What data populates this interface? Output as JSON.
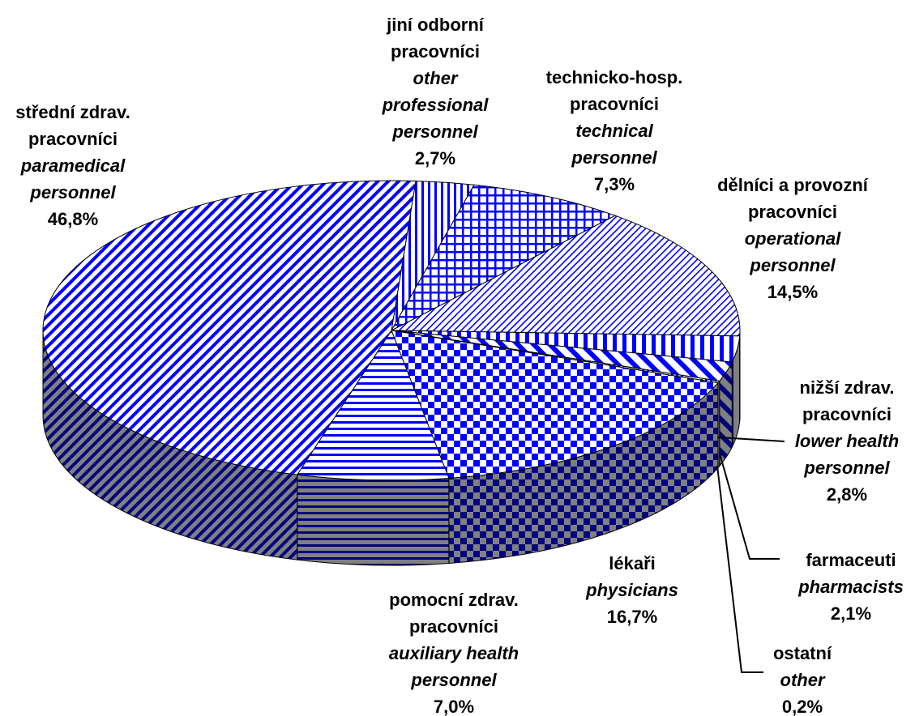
{
  "chart_data": {
    "type": "pie3d",
    "categories": [
      [
        "jiní odborní",
        "pracovníci"
      ],
      [
        "technicko-hosp.",
        "pracovníci"
      ],
      [
        "dělníci a provozní",
        "pracovníci"
      ],
      [
        "nižší zdrav.",
        "pracovníci"
      ],
      [
        "farmaceuti"
      ],
      [
        "ostatní"
      ],
      [
        "lékaři"
      ],
      [
        "pomocní zdrav.",
        "pracovníci"
      ],
      [
        "střední zdrav.",
        "pracovníci"
      ]
    ],
    "categories_en": [
      [
        "other",
        "professional",
        "personnel"
      ],
      [
        "technical",
        "personnel"
      ],
      [
        "operational",
        "personnel"
      ],
      [
        "lower health",
        "personnel"
      ],
      [
        "pharmacists"
      ],
      [
        "other"
      ],
      [
        "physicians"
      ],
      [
        "auxiliary health",
        "personnel"
      ],
      [
        "paramedical",
        "personnel"
      ]
    ],
    "values": [
      2.7,
      7.3,
      14.5,
      2.8,
      2.1,
      0.2,
      16.7,
      7.0,
      46.8
    ],
    "value_labels": [
      "2,7%",
      "7,3%",
      "14,5%",
      "2,8%",
      "2,1%",
      "0,2%",
      "16,7%",
      "7,0%",
      "46,8%"
    ],
    "patterns": [
      "vertical",
      "grid",
      "light-diagonal",
      "wide-vertical",
      "wide-diagonal",
      "dots",
      "checker",
      "horizontal",
      "diagonal"
    ],
    "color": "#0000ff",
    "side_color": "#000080",
    "side_background": "#808080"
  }
}
